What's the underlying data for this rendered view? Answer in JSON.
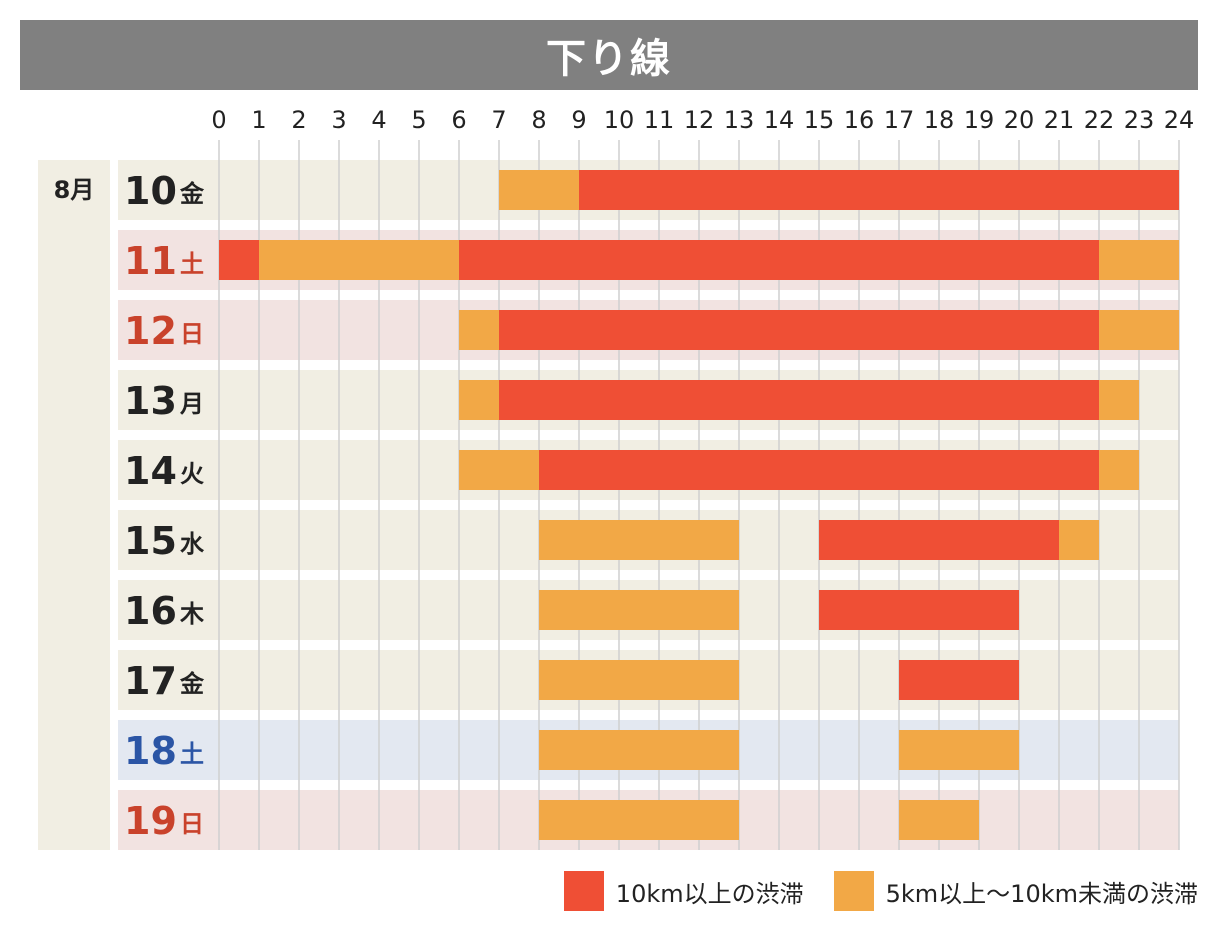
{
  "title": "下り線",
  "colors": {
    "heavy": "#EF4F35",
    "light": "#F2A846",
    "row_weekday": "#F1EEE3",
    "row_holiday": "#F2E3E1",
    "row_saturday": "#E3E8F1",
    "text_weekday": "#222222",
    "text_holiday": "#C9422B",
    "text_saturday": "#2B55A5",
    "grid": "#CFCFCF"
  },
  "legend": {
    "heavy_label": "10km以上の渋滞",
    "light_label": "5km以上～10km未満の渋滞"
  },
  "chart_data": {
    "type": "gantt",
    "title": "下り線",
    "x": [
      0,
      1,
      2,
      3,
      4,
      5,
      6,
      7,
      8,
      9,
      10,
      11,
      12,
      13,
      14,
      15,
      16,
      17,
      18,
      19,
      20,
      21,
      22,
      23,
      24
    ],
    "xlim": [
      0,
      24
    ],
    "month_label": "8月",
    "rows": [
      {
        "day": "10",
        "dow": "金",
        "kind": "weekday",
        "segments": [
          {
            "start": 7,
            "end": 9,
            "level": "light"
          },
          {
            "start": 9,
            "end": 24,
            "level": "heavy"
          }
        ]
      },
      {
        "day": "11",
        "dow": "土",
        "kind": "holiday",
        "segments": [
          {
            "start": 0,
            "end": 1,
            "level": "heavy"
          },
          {
            "start": 1,
            "end": 6,
            "level": "light"
          },
          {
            "start": 6,
            "end": 22,
            "level": "heavy"
          },
          {
            "start": 22,
            "end": 24,
            "level": "light"
          }
        ]
      },
      {
        "day": "12",
        "dow": "日",
        "kind": "holiday",
        "segments": [
          {
            "start": 6,
            "end": 7,
            "level": "light"
          },
          {
            "start": 7,
            "end": 22,
            "level": "heavy"
          },
          {
            "start": 22,
            "end": 24,
            "level": "light"
          }
        ]
      },
      {
        "day": "13",
        "dow": "月",
        "kind": "weekday",
        "segments": [
          {
            "start": 6,
            "end": 7,
            "level": "light"
          },
          {
            "start": 7,
            "end": 22,
            "level": "heavy"
          },
          {
            "start": 22,
            "end": 23,
            "level": "light"
          }
        ]
      },
      {
        "day": "14",
        "dow": "火",
        "kind": "weekday",
        "segments": [
          {
            "start": 6,
            "end": 8,
            "level": "light"
          },
          {
            "start": 8,
            "end": 22,
            "level": "heavy"
          },
          {
            "start": 22,
            "end": 23,
            "level": "light"
          }
        ]
      },
      {
        "day": "15",
        "dow": "水",
        "kind": "weekday",
        "segments": [
          {
            "start": 8,
            "end": 13,
            "level": "light"
          },
          {
            "start": 15,
            "end": 21,
            "level": "heavy"
          },
          {
            "start": 21,
            "end": 22,
            "level": "light"
          }
        ]
      },
      {
        "day": "16",
        "dow": "木",
        "kind": "weekday",
        "segments": [
          {
            "start": 8,
            "end": 13,
            "level": "light"
          },
          {
            "start": 15,
            "end": 20,
            "level": "heavy"
          }
        ]
      },
      {
        "day": "17",
        "dow": "金",
        "kind": "weekday",
        "segments": [
          {
            "start": 8,
            "end": 13,
            "level": "light"
          },
          {
            "start": 17,
            "end": 20,
            "level": "heavy"
          }
        ]
      },
      {
        "day": "18",
        "dow": "土",
        "kind": "saturday",
        "segments": [
          {
            "start": 8,
            "end": 13,
            "level": "light"
          },
          {
            "start": 17,
            "end": 20,
            "level": "light"
          }
        ]
      },
      {
        "day": "19",
        "dow": "日",
        "kind": "holiday",
        "segments": [
          {
            "start": 8,
            "end": 13,
            "level": "light"
          },
          {
            "start": 17,
            "end": 19,
            "level": "light"
          }
        ]
      }
    ]
  }
}
